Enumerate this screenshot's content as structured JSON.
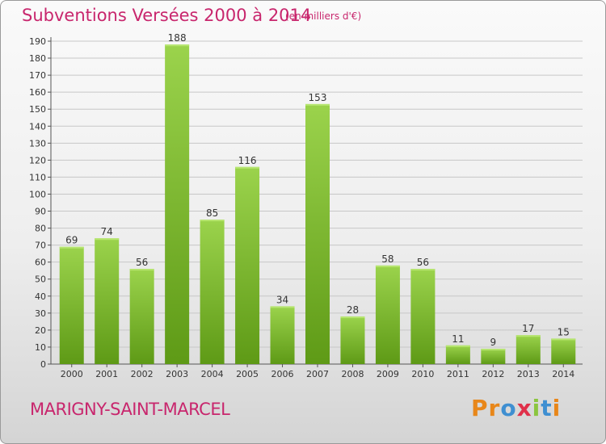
{
  "header": {
    "title": "Subventions Versées 2000 à 2014",
    "unit": "(en milliers d'€)"
  },
  "footer": {
    "commune": "MARIGNY-SAINT-MARCEL",
    "brand": "Proxiti",
    "brand_letters": [
      "P",
      "r",
      "o",
      "x",
      "i",
      "t",
      "i"
    ],
    "brand_colors": [
      "#e8871a",
      "#e8871a",
      "#3f8fd1",
      "#e0304a",
      "#8bc53f",
      "#3f8fd1",
      "#e8871a"
    ]
  },
  "chart_data": {
    "type": "bar",
    "title": "Subventions Versées 2000 à 2014",
    "subtitle": "(en milliers d'€)",
    "xlabel": "",
    "ylabel": "",
    "categories": [
      "2000",
      "2001",
      "2002",
      "2003",
      "2004",
      "2005",
      "2006",
      "2007",
      "2008",
      "2009",
      "2010",
      "2011",
      "2012",
      "2013",
      "2014"
    ],
    "values": [
      69,
      74,
      56,
      188,
      85,
      116,
      34,
      153,
      28,
      58,
      56,
      11,
      9,
      17,
      15
    ],
    "ylim": [
      0,
      190
    ],
    "yticks": [
      0,
      10,
      20,
      30,
      40,
      50,
      60,
      70,
      80,
      90,
      100,
      110,
      120,
      130,
      140,
      150,
      160,
      170,
      180,
      190
    ],
    "grid": true,
    "colors": {
      "bar_top": "#9bd34c",
      "bar_bottom": "#5e9a16",
      "grid": "#c7c7c7",
      "text": "#333333"
    }
  }
}
